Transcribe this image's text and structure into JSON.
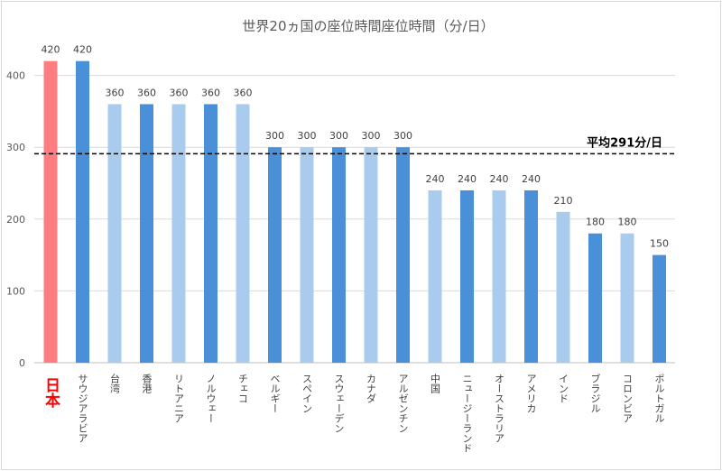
{
  "chart_data": {
    "type": "bar",
    "title": "世界20ヵ国の座位時間座位時間（分/日）",
    "categories": [
      "日本",
      "サウジアラビア",
      "台湾",
      "香港",
      "リトアニア",
      "ノルウェー",
      "チェコ",
      "ベルギー",
      "スペイン",
      "スウェーデン",
      "カナダ",
      "アルゼンチン",
      "中国",
      "ニュージーランド",
      "オーストラリア",
      "アメリカ",
      "インド",
      "ブラジル",
      "コロンビア",
      "ポルトガル"
    ],
    "values": [
      420,
      420,
      360,
      360,
      360,
      360,
      360,
      300,
      300,
      300,
      300,
      300,
      240,
      240,
      240,
      240,
      210,
      180,
      180,
      150
    ],
    "data_labels": [
      "420",
      "420",
      "360",
      "360",
      "360",
      "360",
      "360",
      "300",
      "300",
      "300",
      "300",
      "300",
      "240",
      "240",
      "240",
      "240",
      "210",
      "180",
      "180",
      "150"
    ],
    "yticks": [
      0,
      100,
      200,
      300,
      400
    ],
    "ytick_labels": [
      "0",
      "100",
      "200",
      "300",
      "400"
    ],
    "ylim": [
      0,
      445
    ],
    "average": {
      "value": 291,
      "label": "平均291分/日"
    },
    "highlight_index": 0,
    "colors": {
      "highlight": "#ff7c80",
      "dark": "#4a90d9",
      "light": "#a9ccee",
      "grid": "#d9d9d9",
      "axis": "#bfbfbf"
    },
    "bar_shades": [
      "highlight",
      "dark",
      "light",
      "dark",
      "light",
      "dark",
      "light",
      "dark",
      "light",
      "dark",
      "light",
      "dark",
      "light",
      "dark",
      "light",
      "dark",
      "light",
      "dark",
      "light",
      "dark"
    ]
  }
}
